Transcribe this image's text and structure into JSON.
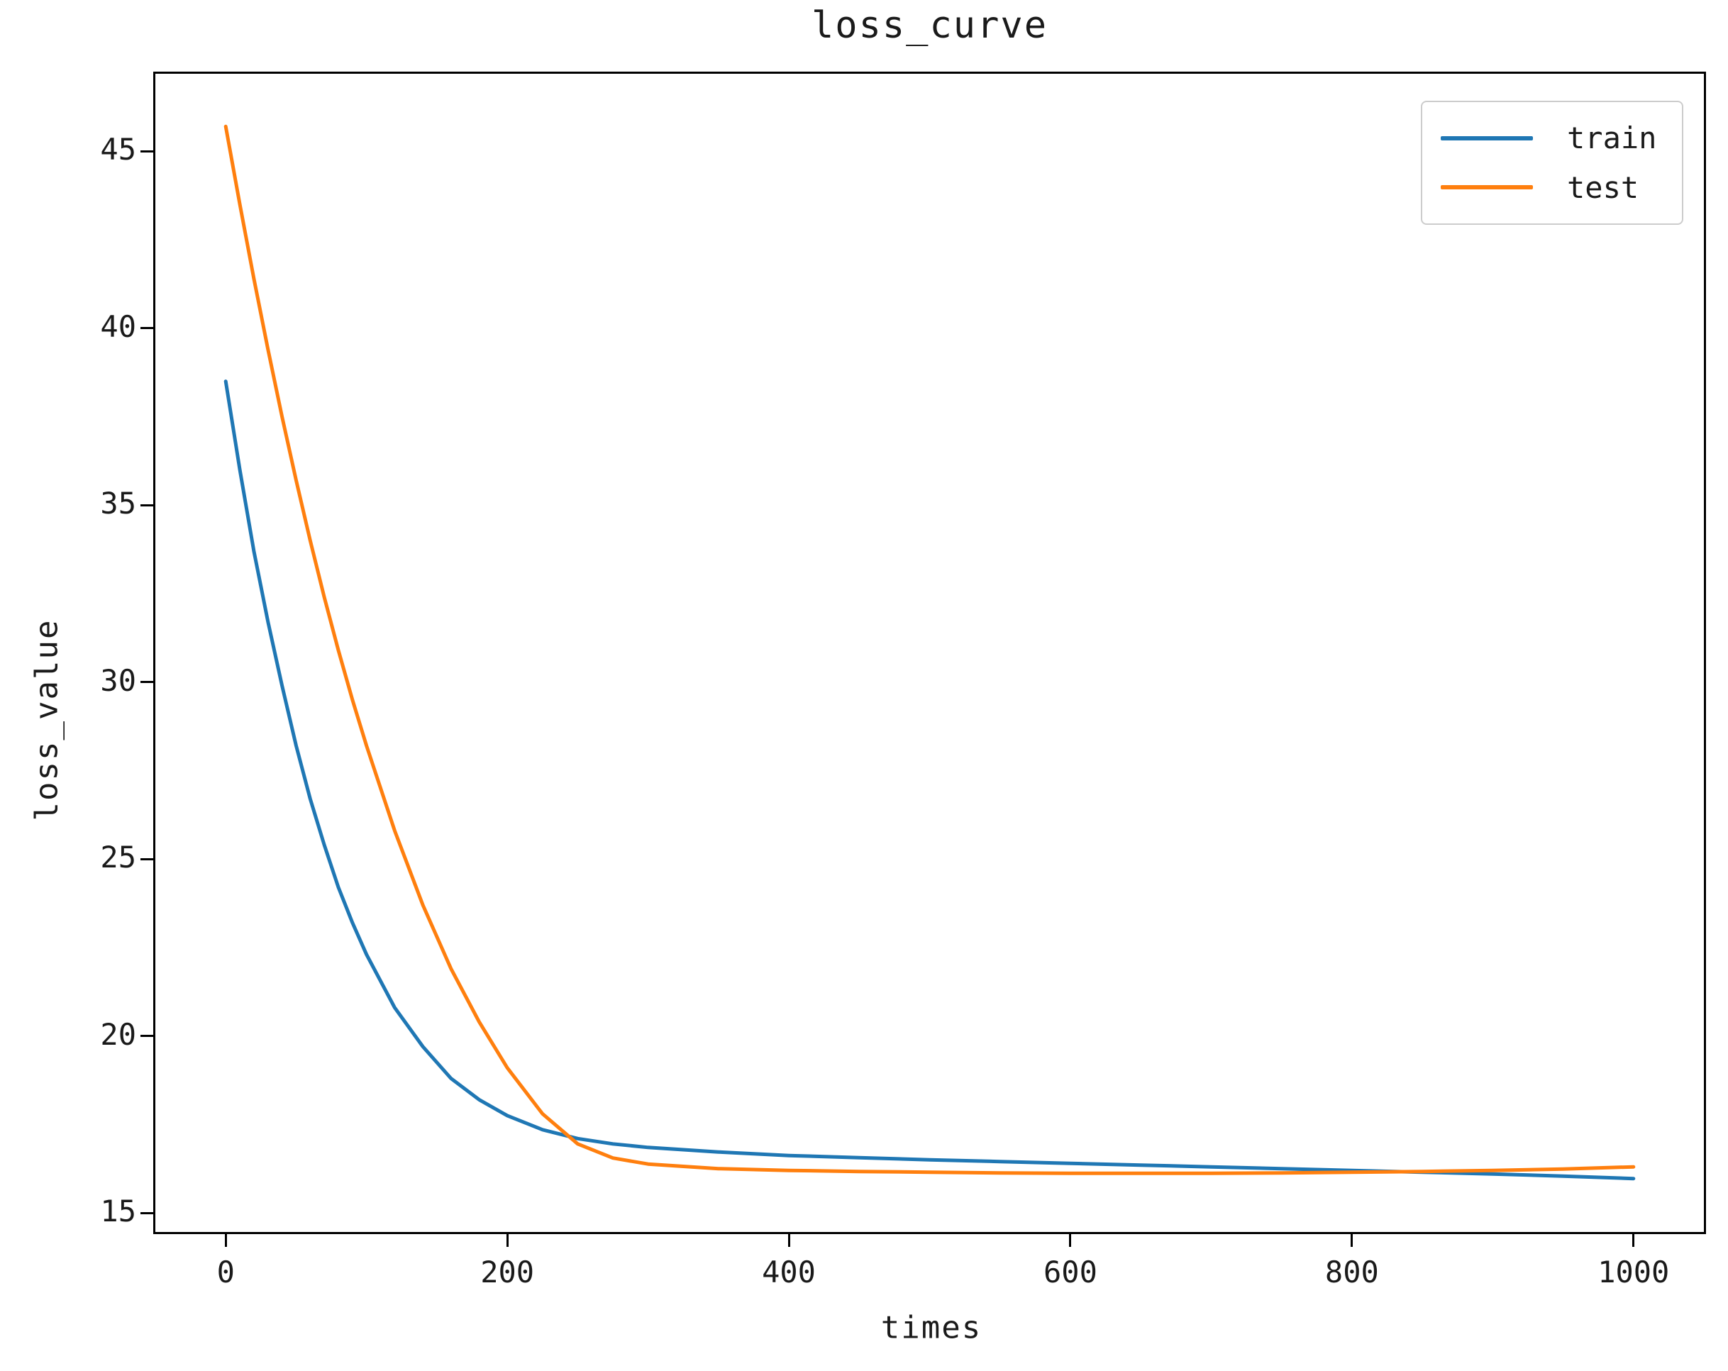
{
  "figure": {
    "background": "#ffffff",
    "text_color": "#1a1a1a",
    "spine_color": "#000000"
  },
  "title": "loss_curve",
  "xlabel": "times",
  "ylabel": "loss_value",
  "legend": {
    "position": "upper right",
    "items": [
      {
        "label": "train",
        "color": "#1f77b4"
      },
      {
        "label": "test",
        "color": "#ff7f0e"
      }
    ]
  },
  "chart_data": {
    "type": "line",
    "title": "loss_curve",
    "xlabel": "times",
    "ylabel": "loss_value",
    "grid": false,
    "legend_position": "upper right",
    "x_ticks": [
      0,
      200,
      400,
      600,
      800,
      1000
    ],
    "y_ticks": [
      15,
      20,
      25,
      30,
      35,
      40,
      45
    ],
    "xlim": [
      -50,
      1050
    ],
    "ylim": [
      14.46,
      47.19
    ],
    "line_width": 5,
    "x": [
      0,
      10,
      20,
      30,
      40,
      50,
      60,
      70,
      80,
      90,
      100,
      120,
      140,
      160,
      180,
      200,
      225,
      250,
      275,
      300,
      350,
      400,
      450,
      500,
      550,
      600,
      650,
      700,
      750,
      800,
      850,
      900,
      950,
      1000
    ],
    "series": [
      {
        "name": "train",
        "color": "#1f77b4",
        "values": [
          38.5,
          36.0,
          33.7,
          31.7,
          29.9,
          28.2,
          26.7,
          25.4,
          24.2,
          23.2,
          22.3,
          20.8,
          19.7,
          18.8,
          18.2,
          17.75,
          17.35,
          17.1,
          16.95,
          16.85,
          16.72,
          16.62,
          16.56,
          16.5,
          16.45,
          16.4,
          16.35,
          16.3,
          16.25,
          16.2,
          16.15,
          16.1,
          16.04,
          15.97
        ]
      },
      {
        "name": "test",
        "color": "#ff7f0e",
        "values": [
          45.7,
          43.5,
          41.4,
          39.4,
          37.5,
          35.7,
          34.0,
          32.4,
          30.9,
          29.5,
          28.2,
          25.8,
          23.7,
          21.9,
          20.4,
          19.1,
          17.8,
          16.95,
          16.55,
          16.38,
          16.25,
          16.2,
          16.17,
          16.15,
          16.13,
          16.12,
          16.12,
          16.12,
          16.13,
          16.15,
          16.17,
          16.2,
          16.24,
          16.3
        ]
      }
    ]
  }
}
